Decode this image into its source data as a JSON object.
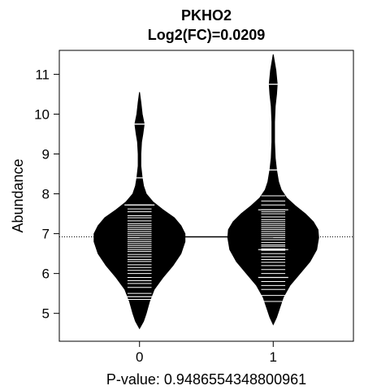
{
  "chart_data": {
    "type": "beanplot",
    "title": "PKHO2",
    "subtitle": "Log2(FC)=0.0209",
    "xlabel": "P-value: 0.9486554348800961",
    "ylabel": "Abundance",
    "categories": [
      "0",
      "1"
    ],
    "ylim": [
      4.3,
      11.6
    ],
    "yticks": [
      5,
      6,
      7,
      8,
      9,
      10,
      11
    ],
    "overall_median": 6.92,
    "groups": [
      {
        "name": "0",
        "density": [
          [
            4.62,
            0.0
          ],
          [
            4.8,
            0.06
          ],
          [
            5.0,
            0.1
          ],
          [
            5.3,
            0.15
          ],
          [
            5.6,
            0.22
          ],
          [
            5.9,
            0.35
          ],
          [
            6.2,
            0.5
          ],
          [
            6.5,
            0.62
          ],
          [
            6.8,
            0.68
          ],
          [
            7.0,
            0.68
          ],
          [
            7.2,
            0.62
          ],
          [
            7.4,
            0.52
          ],
          [
            7.6,
            0.35
          ],
          [
            7.8,
            0.2
          ],
          [
            8.0,
            0.1
          ],
          [
            8.2,
            0.06
          ],
          [
            8.4,
            0.04
          ],
          [
            8.7,
            0.02
          ],
          [
            9.0,
            0.02
          ],
          [
            9.3,
            0.03
          ],
          [
            9.5,
            0.05
          ],
          [
            9.75,
            0.07
          ],
          [
            10.0,
            0.04
          ],
          [
            10.3,
            0.02
          ],
          [
            10.55,
            0.0
          ]
        ],
        "observations": [
          5.35,
          5.42,
          5.5,
          5.65,
          5.75,
          5.82,
          5.9,
          6.0,
          6.08,
          6.15,
          6.22,
          6.3,
          6.35,
          6.42,
          6.48,
          6.55,
          6.6,
          6.65,
          6.7,
          6.75,
          6.8,
          6.85,
          6.9,
          6.95,
          7.0,
          7.05,
          7.1,
          7.15,
          7.2,
          7.25,
          7.32,
          7.4,
          7.45,
          7.55,
          7.62,
          7.72,
          8.4,
          9.75
        ],
        "wide_lines": [
          5.42,
          7.72,
          8.4,
          9.75
        ]
      },
      {
        "name": "1",
        "density": [
          [
            4.72,
            0.0
          ],
          [
            4.9,
            0.05
          ],
          [
            5.1,
            0.09
          ],
          [
            5.4,
            0.15
          ],
          [
            5.7,
            0.25
          ],
          [
            6.0,
            0.4
          ],
          [
            6.3,
            0.55
          ],
          [
            6.6,
            0.65
          ],
          [
            6.9,
            0.68
          ],
          [
            7.1,
            0.67
          ],
          [
            7.3,
            0.6
          ],
          [
            7.5,
            0.48
          ],
          [
            7.7,
            0.33
          ],
          [
            7.9,
            0.2
          ],
          [
            8.1,
            0.12
          ],
          [
            8.3,
            0.08
          ],
          [
            8.6,
            0.05
          ],
          [
            8.9,
            0.03
          ],
          [
            9.3,
            0.02
          ],
          [
            9.8,
            0.02
          ],
          [
            10.2,
            0.03
          ],
          [
            10.5,
            0.05
          ],
          [
            10.75,
            0.06
          ],
          [
            11.1,
            0.04
          ],
          [
            11.5,
            0.0
          ]
        ],
        "observations": [
          5.3,
          5.45,
          5.6,
          5.7,
          5.8,
          5.9,
          6.0,
          6.1,
          6.2,
          6.28,
          6.35,
          6.42,
          6.5,
          6.58,
          6.62,
          6.68,
          6.72,
          6.78,
          6.85,
          6.9,
          6.95,
          7.0,
          7.05,
          7.1,
          7.15,
          7.2,
          7.25,
          7.3,
          7.35,
          7.42,
          7.5,
          7.55,
          7.6,
          7.72,
          7.82,
          7.95,
          8.6,
          10.75
        ],
        "wide_lines": [
          5.9,
          6.6,
          7.6,
          8.6,
          10.75
        ]
      }
    ],
    "colors": {
      "bean": "#000000",
      "observation_line": "#ffffff",
      "frame": "#000000",
      "background": "#ffffff"
    }
  }
}
